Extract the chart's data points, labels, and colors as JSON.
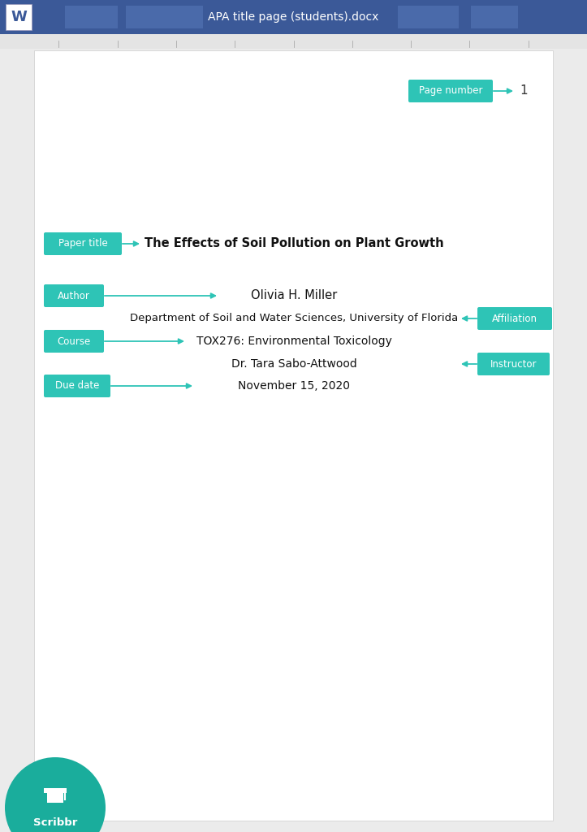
{
  "toolbar_color": "#3b5998",
  "toolbar_text": "APA title page (students).docx",
  "toolbar_text_color": "#ffffff",
  "ruler_color": "#e4e4e4",
  "page_bg": "#ffffff",
  "outer_bg": "#ebebeb",
  "teal_color": "#2ec4b6",
  "page_number_label": "Page number",
  "page_number_value": "1",
  "paper_title_label": "Paper title",
  "paper_title_text": "The Effects of Soil Pollution on Plant Growth",
  "author_label": "Author",
  "author_text": "Olivia H. Miller",
  "affiliation_label": "Affiliation",
  "affiliation_text": "Department of Soil and Water Sciences, University of Florida",
  "course_label": "Course",
  "course_text": "TOX276: Environmental Toxicology",
  "instructor_label": "Instructor",
  "instructor_text": "Dr. Tara Sabo-Attwood",
  "due_date_label": "Due date",
  "due_date_text": "November 15, 2020",
  "scribbr_color": "#1aad9c",
  "scribbr_text": "Scribbr",
  "toolbar_placeholder_color": "#4a6aaa",
  "word_bg": "#ffffff",
  "word_color": "#3b5998"
}
